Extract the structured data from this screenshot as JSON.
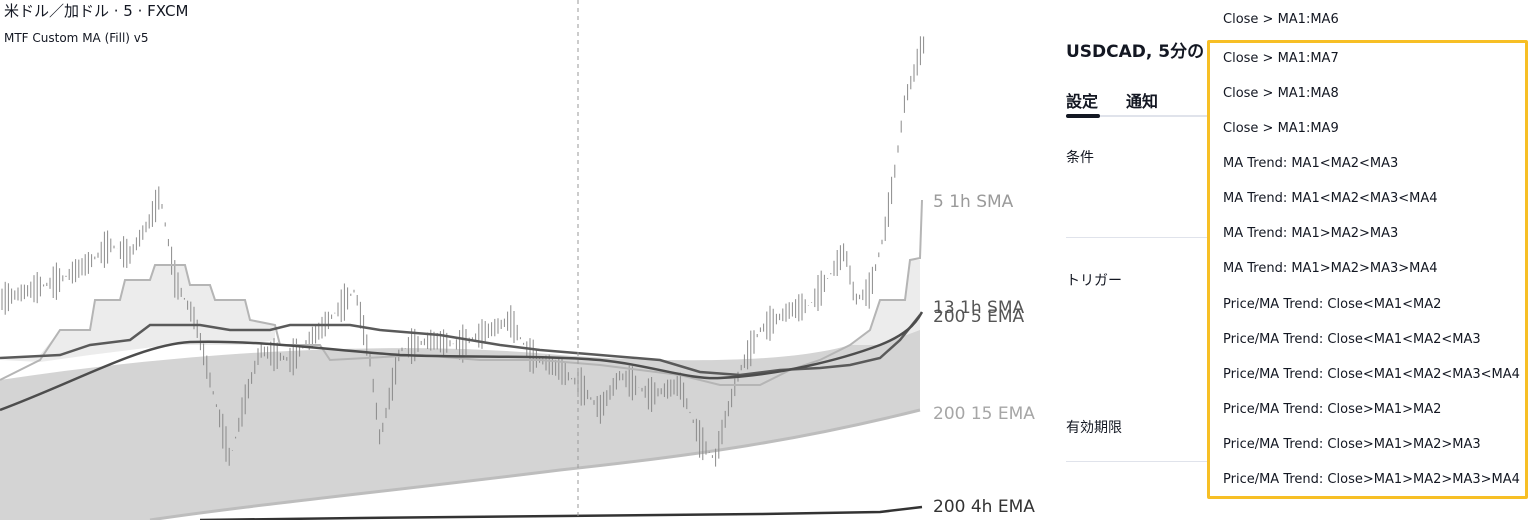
{
  "chart": {
    "title": "米ドル／加ドル · 5 · FXCM",
    "indicator": "MTF Custom MA (Fill) v5",
    "ma_labels": [
      {
        "text": "5 1h SMA",
        "color": "#9a9a9a"
      },
      {
        "text": "13 1h SMA",
        "color": "#555555"
      },
      {
        "text": "200 5 EMA",
        "color": "#555555"
      },
      {
        "text": "200 15 EMA",
        "color": "#a6a6a6"
      },
      {
        "text": "200 4h EMA",
        "color": "#333333"
      }
    ]
  },
  "panel": {
    "title": "USDCAD, 5分の",
    "tabs": [
      {
        "label": "設定",
        "active": true
      },
      {
        "label": "通知",
        "active": false
      }
    ],
    "rows": [
      {
        "label": "条件"
      },
      {
        "label": "トリガー"
      },
      {
        "label": "有効期限"
      }
    ]
  },
  "dropdown": {
    "highlight_color": "#f7bf25",
    "partial_top_item": "Close > MA1:MA6",
    "items": [
      "Close > MA1:MA7",
      "Close > MA1:MA8",
      "Close > MA1:MA9",
      "MA Trend: MA1<MA2<MA3",
      "MA Trend: MA1<MA2<MA3<MA4",
      "MA Trend: MA1>MA2>MA3",
      "MA Trend: MA1>MA2>MA3>MA4",
      "Price/MA Trend: Close<MA1<MA2",
      "Price/MA Trend: Close<MA1<MA2<MA3",
      "Price/MA Trend: Close<MA1<MA2<MA3<MA4",
      "Price/MA Trend: Close>MA1>MA2",
      "Price/MA Trend: Close>MA1>MA2>MA3",
      "Price/MA Trend: Close>MA1>MA2>MA3>MA4"
    ]
  }
}
